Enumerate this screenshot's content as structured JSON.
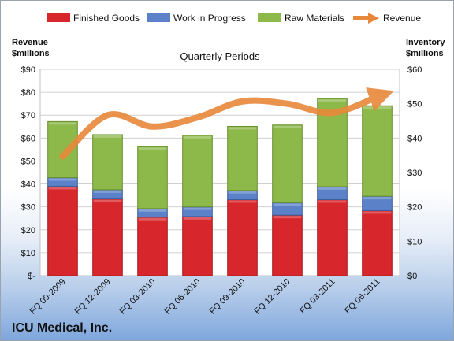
{
  "chart_data": {
    "type": "bar",
    "title": "Quarterly Periods",
    "company": "ICU Medical, Inc.",
    "y_left_label": [
      "Revenue",
      "$millions"
    ],
    "y_right_label": [
      "Inventory",
      "$millions"
    ],
    "categories": [
      "FQ 09-2009",
      "FQ 12-2009",
      "FQ 03-2010",
      "FQ 06-2010",
      "FQ 09-2010",
      "FQ 12-2010",
      "FQ 03-2011",
      "FQ 06-2011"
    ],
    "left_ticks": [
      "$-",
      "$10",
      "$20",
      "$30",
      "$40",
      "$50",
      "$60",
      "$70",
      "$80",
      "$90"
    ],
    "right_ticks": [
      "$0",
      "$10",
      "$20",
      "$30",
      "$40",
      "$50",
      "$60"
    ],
    "left_axis": {
      "min": 0,
      "max": 90,
      "step": 10
    },
    "right_axis": {
      "min": 0,
      "max": 60,
      "step": 10
    },
    "grid": true,
    "legend_position": "top",
    "stacked": true,
    "series": [
      {
        "name": "Finished Goods",
        "axis": "right",
        "color": "#d7262c",
        "values": [
          26,
          22.3,
          17,
          17.2,
          22.1,
          17.6,
          22.1,
          18.9
        ]
      },
      {
        "name": "Work in Progress",
        "axis": "right",
        "color": "#5b82c8",
        "values": [
          2.5,
          2.7,
          2.5,
          2.8,
          2.7,
          3.6,
          3.8,
          4.2
        ]
      },
      {
        "name": "Raw Materials",
        "axis": "right",
        "color": "#8db84a",
        "values": [
          16.3,
          16.0,
          18.0,
          20.8,
          18.6,
          22.6,
          25.6,
          26.3
        ]
      },
      {
        "name": "Revenue",
        "axis": "left",
        "type": "line",
        "color": "#e8883a",
        "values": [
          52,
          70,
          65,
          69,
          76,
          75,
          71,
          78
        ]
      }
    ]
  }
}
